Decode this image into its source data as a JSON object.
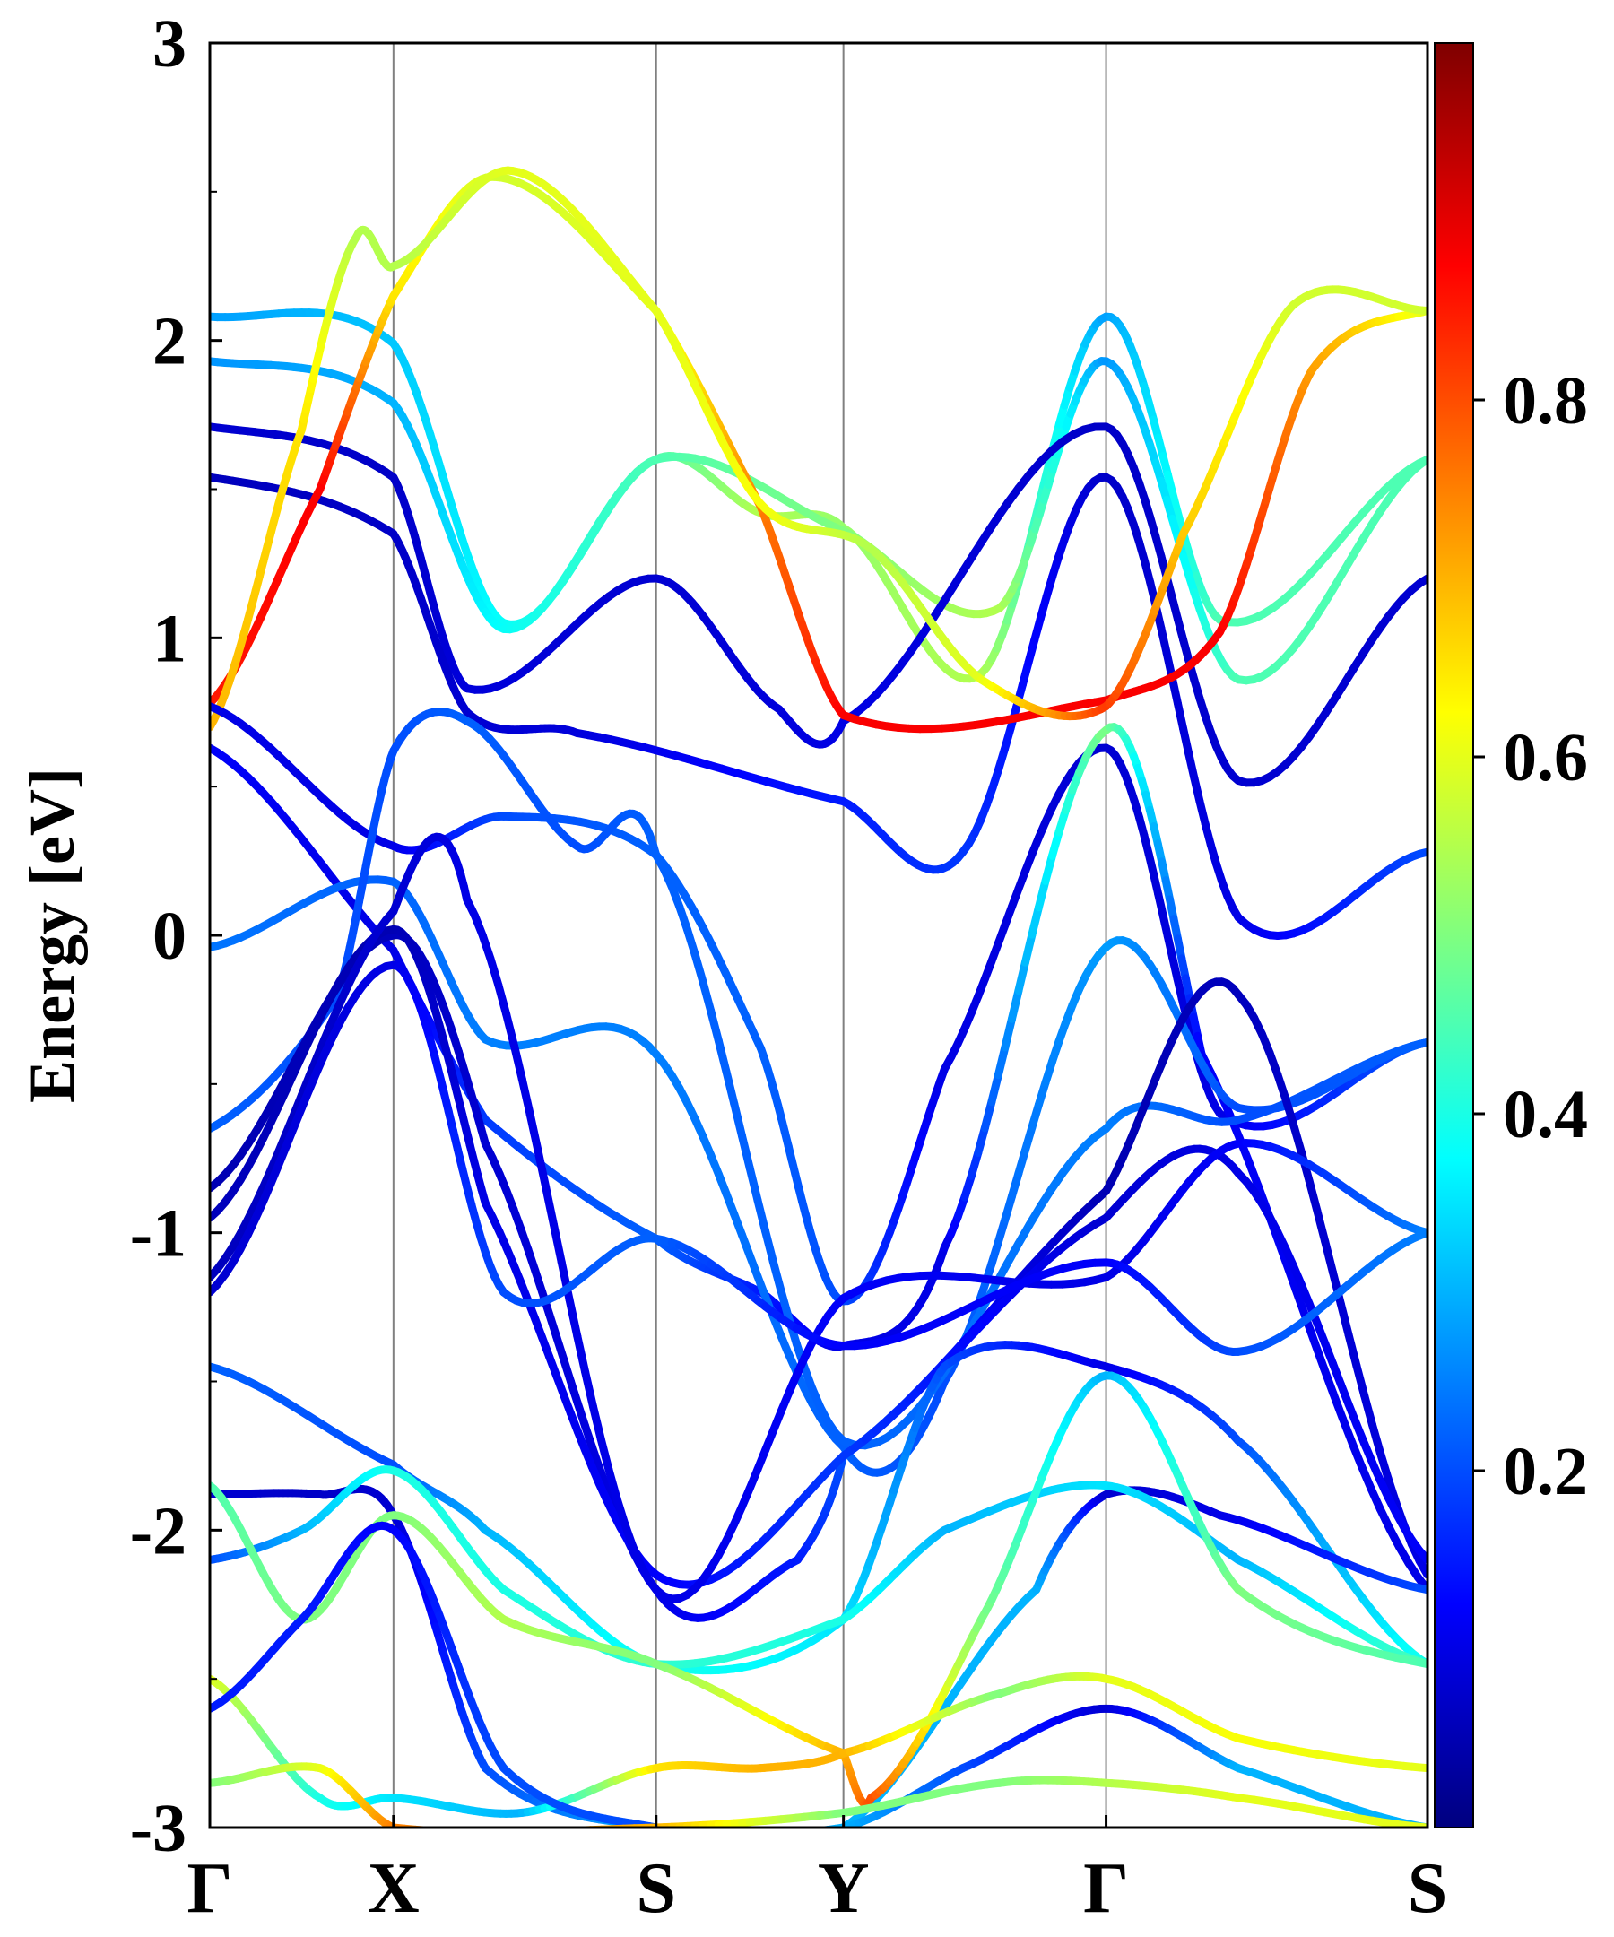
{
  "chart_data": {
    "type": "line",
    "title": "",
    "ylabel": "Energy [eV]",
    "xlabel": "",
    "ylim": [
      -3,
      3
    ],
    "y_ticks": [
      {
        "value": 3,
        "label": "3"
      },
      {
        "value": 2,
        "label": "2"
      },
      {
        "value": 1,
        "label": "1"
      },
      {
        "value": 0,
        "label": "0"
      },
      {
        "value": -1,
        "label": "-1"
      },
      {
        "value": -2,
        "label": "-2"
      },
      {
        "value": -3,
        "label": "-3"
      }
    ],
    "x_path": [
      {
        "label": "Γ",
        "k": 0.0
      },
      {
        "label": "X",
        "k": 1.0
      },
      {
        "label": "S",
        "k": 2.43
      },
      {
        "label": "Y",
        "k": 3.45
      },
      {
        "label": "Γ",
        "k": 4.88
      },
      {
        "label": "S",
        "k": 6.63
      }
    ],
    "grid": "vertical lines at high-symmetry points",
    "colormap": "jet",
    "colorbar": {
      "range": [
        0.0,
        1.0
      ],
      "ticks": [
        {
          "value": 0.2,
          "label": "0.2"
        },
        {
          "value": 0.4,
          "label": "0.4"
        },
        {
          "value": 0.6,
          "label": "0.6"
        },
        {
          "value": 0.8,
          "label": "0.8"
        }
      ]
    },
    "series": [
      {
        "points": [
          [
            0,
            2.08,
            0.28
          ],
          [
            1,
            1.99,
            0.32
          ],
          [
            1.6,
            1.05,
            0.38
          ],
          [
            2.43,
            1.6,
            0.45
          ],
          [
            3.0,
            1.42,
            0.55
          ],
          [
            3.45,
            1.37,
            0.52
          ],
          [
            4.2,
            0.88,
            0.55
          ],
          [
            4.88,
            2.08,
            0.28
          ],
          [
            5.5,
            1.06,
            0.45
          ],
          [
            6.63,
            1.6,
            0.45
          ]
        ]
      },
      {
        "points": [
          [
            0,
            1.93,
            0.27
          ],
          [
            1,
            1.79,
            0.3
          ],
          [
            1.6,
            1.03,
            0.38
          ],
          [
            2.43,
            1.6,
            0.45
          ],
          [
            3.45,
            1.36,
            0.5
          ],
          [
            4.3,
            1.1,
            0.55
          ],
          [
            4.88,
            1.93,
            0.27
          ],
          [
            5.6,
            0.86,
            0.45
          ],
          [
            6.63,
            1.6,
            0.45
          ]
        ]
      },
      {
        "points": [
          [
            0,
            1.71,
            0.08
          ],
          [
            1,
            1.54,
            0.07
          ],
          [
            1.4,
            0.83,
            0.09
          ],
          [
            2.43,
            1.2,
            0.08
          ],
          [
            3.1,
            0.76,
            0.09
          ],
          [
            3.45,
            0.72,
            0.1
          ],
          [
            4.88,
            1.71,
            0.07
          ],
          [
            5.6,
            0.52,
            0.08
          ],
          [
            6.63,
            1.2,
            0.08
          ]
        ]
      },
      {
        "points": [
          [
            0,
            1.54,
            0.06
          ],
          [
            1,
            1.35,
            0.07
          ],
          [
            1.4,
            0.75,
            0.08
          ],
          [
            2.0,
            0.68,
            0.09
          ],
          [
            3.45,
            0.45,
            0.15
          ],
          [
            4.1,
            0.28,
            0.18
          ],
          [
            4.88,
            1.54,
            0.07
          ],
          [
            5.6,
            0.06,
            0.1
          ],
          [
            6.63,
            0.28,
            0.2
          ]
        ]
      },
      {
        "points": [
          [
            0,
            0.78,
            0.85
          ],
          [
            0.6,
            1.5,
            0.88
          ],
          [
            1,
            2.15,
            0.65
          ],
          [
            1.55,
            2.55,
            0.58
          ],
          [
            2.43,
            2.1,
            0.6
          ],
          [
            3.0,
            1.44,
            0.75
          ],
          [
            3.45,
            0.74,
            0.88
          ],
          [
            4.88,
            0.79,
            0.88
          ],
          [
            5.5,
            1.02,
            0.88
          ],
          [
            6.0,
            1.9,
            0.72
          ],
          [
            6.63,
            2.1,
            0.6
          ]
        ]
      },
      {
        "points": [
          [
            0,
            0.7,
            0.7
          ],
          [
            0.5,
            1.7,
            0.65
          ],
          [
            0.8,
            2.35,
            0.55
          ],
          [
            1,
            2.25,
            0.55
          ],
          [
            1.65,
            2.57,
            0.6
          ],
          [
            2.43,
            2.1,
            0.6
          ],
          [
            3.0,
            1.45,
            0.62
          ],
          [
            3.6,
            1.3,
            0.55
          ],
          [
            4.2,
            0.86,
            0.6
          ],
          [
            4.88,
            0.77,
            0.82
          ],
          [
            5.3,
            1.35,
            0.68
          ],
          [
            5.9,
            2.12,
            0.58
          ],
          [
            6.63,
            2.1,
            0.58
          ]
        ]
      },
      {
        "points": [
          [
            0,
            0.77,
            0.1
          ],
          [
            1,
            0.3,
            0.1
          ],
          [
            1.6,
            0.4,
            0.2
          ],
          [
            2.43,
            0.27,
            0.22
          ],
          [
            3.0,
            -0.38,
            0.22
          ],
          [
            3.45,
            -1.23,
            0.2
          ],
          [
            4.0,
            -0.45,
            0.1
          ],
          [
            4.88,
            0.63,
            0.08
          ],
          [
            5.5,
            -0.6,
            0.1
          ],
          [
            6.63,
            -0.36,
            0.22
          ]
        ]
      },
      {
        "points": [
          [
            0,
            0.63,
            0.12
          ],
          [
            1,
            -0.05,
            0.1
          ],
          [
            1.5,
            -0.62,
            0.18
          ],
          [
            2.43,
            -1.02,
            0.22
          ],
          [
            3.0,
            -1.2,
            0.15
          ],
          [
            3.45,
            -1.38,
            0.1
          ],
          [
            4.0,
            -1.05,
            0.1
          ],
          [
            4.88,
            0.69,
            0.5
          ],
          [
            5.4,
            -0.4,
            0.12
          ],
          [
            6.63,
            -2.2,
            0.1
          ]
        ]
      },
      {
        "points": [
          [
            0,
            -0.04,
            0.24
          ],
          [
            1,
            0.18,
            0.22
          ],
          [
            1.5,
            -0.35,
            0.25
          ],
          [
            2.43,
            -0.4,
            0.25
          ],
          [
            3.45,
            -1.72,
            0.22
          ],
          [
            4.0,
            -1.5,
            0.2
          ],
          [
            4.88,
            -0.04,
            0.28
          ],
          [
            5.6,
            -0.58,
            0.2
          ],
          [
            6.63,
            -0.36,
            0.22
          ]
        ]
      },
      {
        "points": [
          [
            0,
            -0.65,
            0.22
          ],
          [
            0.7,
            -0.2,
            0.2
          ],
          [
            1,
            0.62,
            0.2
          ],
          [
            1.4,
            0.72,
            0.22
          ],
          [
            2.0,
            0.3,
            0.2
          ],
          [
            2.43,
            0.27,
            0.22
          ],
          [
            3.45,
            -1.7,
            0.22
          ],
          [
            4.88,
            -0.65,
            0.25
          ],
          [
            5.6,
            -0.62,
            0.2
          ],
          [
            6.63,
            -0.36,
            0.22
          ]
        ]
      },
      {
        "points": [
          [
            0,
            -0.85,
            0.05
          ],
          [
            1,
            0.0,
            0.06
          ],
          [
            1.5,
            -0.7,
            0.08
          ],
          [
            2.43,
            -2.2,
            0.1
          ],
          [
            3.2,
            -2.1,
            0.15
          ],
          [
            3.45,
            -1.75,
            0.2
          ],
          [
            4.88,
            -0.86,
            0.05
          ],
          [
            5.6,
            -0.2,
            0.06
          ],
          [
            6.63,
            -2.15,
            0.1
          ]
        ]
      },
      {
        "points": [
          [
            0,
            -0.95,
            0.06
          ],
          [
            1,
            0.02,
            0.05
          ],
          [
            1.5,
            -0.9,
            0.1
          ],
          [
            2.43,
            -2.15,
            0.12
          ],
          [
            3.45,
            -1.75,
            0.18
          ],
          [
            4.88,
            -0.95,
            0.08
          ],
          [
            5.6,
            -0.8,
            0.1
          ],
          [
            6.63,
            -2.1,
            0.12
          ]
        ]
      },
      {
        "points": [
          [
            0,
            -1.15,
            0.06
          ],
          [
            1,
            0.08,
            0.08
          ],
          [
            1.4,
            0.12,
            0.1
          ],
          [
            2.43,
            -2.2,
            0.1
          ],
          [
            3.45,
            -1.22,
            0.12
          ],
          [
            4.88,
            -1.15,
            0.1
          ],
          [
            5.6,
            -0.7,
            0.12
          ],
          [
            6.63,
            -1.0,
            0.25
          ]
        ]
      },
      {
        "points": [
          [
            0,
            -1.2,
            0.08
          ],
          [
            1,
            -0.1,
            0.1
          ],
          [
            1.6,
            -1.2,
            0.2
          ],
          [
            2.43,
            -1.02,
            0.22
          ],
          [
            3.45,
            -1.38,
            0.12
          ],
          [
            4.88,
            -1.1,
            0.12
          ],
          [
            5.6,
            -1.4,
            0.2
          ],
          [
            6.63,
            -1.0,
            0.25
          ]
        ]
      },
      {
        "points": [
          [
            0,
            -1.45,
            0.22
          ],
          [
            1,
            -1.78,
            0.2
          ],
          [
            1.5,
            -2.0,
            0.3
          ],
          [
            2.43,
            -2.45,
            0.4
          ],
          [
            3.45,
            -2.3,
            0.35
          ],
          [
            4.0,
            -1.45,
            0.2
          ],
          [
            4.88,
            -1.45,
            0.1
          ],
          [
            5.6,
            -1.7,
            0.2
          ],
          [
            6.63,
            -2.45,
            0.4
          ]
        ]
      },
      {
        "points": [
          [
            0,
            -1.88,
            0.08
          ],
          [
            0.6,
            -1.88,
            0.07
          ],
          [
            1,
            -1.95,
            0.08
          ],
          [
            1.5,
            -2.8,
            0.2
          ],
          [
            2.43,
            -3.0,
            0.3
          ],
          [
            3.45,
            -3.0,
            0.3
          ],
          [
            4.5,
            -2.2,
            0.3
          ],
          [
            4.88,
            -1.88,
            0.08
          ],
          [
            5.5,
            -1.95,
            0.1
          ],
          [
            6.63,
            -2.2,
            0.2
          ]
        ]
      },
      {
        "points": [
          [
            0,
            -2.1,
            0.2
          ],
          [
            0.5,
            -2.0,
            0.3
          ],
          [
            1,
            -1.8,
            0.4
          ],
          [
            1.6,
            -2.2,
            0.4
          ],
          [
            2.43,
            -2.45,
            0.42
          ],
          [
            3.45,
            -2.3,
            0.4
          ],
          [
            4.0,
            -2.0,
            0.3
          ],
          [
            4.88,
            -1.85,
            0.35
          ],
          [
            5.6,
            -2.1,
            0.3
          ],
          [
            6.63,
            -2.45,
            0.45
          ]
        ]
      },
      {
        "points": [
          [
            0,
            -1.85,
            0.45
          ],
          [
            0.5,
            -2.3,
            0.5
          ],
          [
            1,
            -1.95,
            0.5
          ],
          [
            1.6,
            -2.3,
            0.55
          ],
          [
            2.43,
            -2.45,
            0.5
          ],
          [
            3.45,
            -2.75,
            0.7
          ],
          [
            3.6,
            -2.9,
            0.8
          ],
          [
            4.2,
            -2.3,
            0.5
          ],
          [
            4.88,
            -1.48,
            0.3
          ],
          [
            5.6,
            -2.2,
            0.5
          ],
          [
            6.63,
            -2.45,
            0.45
          ]
        ]
      },
      {
        "points": [
          [
            0,
            -2.5,
            0.6
          ],
          [
            0.6,
            -2.9,
            0.4
          ],
          [
            1,
            -2.9,
            0.35
          ],
          [
            1.7,
            -2.95,
            0.3
          ],
          [
            2.43,
            -2.8,
            0.65
          ],
          [
            3.0,
            -2.8,
            0.7
          ],
          [
            3.45,
            -2.75,
            0.7
          ],
          [
            4.3,
            -2.55,
            0.5
          ],
          [
            4.88,
            -2.5,
            0.6
          ],
          [
            5.6,
            -2.7,
            0.62
          ],
          [
            6.63,
            -2.8,
            0.6
          ]
        ]
      },
      {
        "points": [
          [
            0,
            -2.6,
            0.15
          ],
          [
            0.5,
            -2.3,
            0.15
          ],
          [
            1,
            -2.0,
            0.12
          ],
          [
            1.6,
            -2.8,
            0.2
          ],
          [
            2.43,
            -3.0,
            0.2
          ],
          [
            3.45,
            -3.0,
            0.3
          ],
          [
            4.1,
            -2.8,
            0.2
          ],
          [
            4.88,
            -2.6,
            0.08
          ],
          [
            5.6,
            -2.8,
            0.3
          ],
          [
            6.63,
            -3.0,
            0.3
          ]
        ]
      },
      {
        "points": [
          [
            0,
            -2.85,
            0.5
          ],
          [
            0.6,
            -2.8,
            0.6
          ],
          [
            1,
            -3.0,
            0.75
          ],
          [
            2.43,
            -3.0,
            0.7
          ],
          [
            3.45,
            -2.95,
            0.5
          ],
          [
            4.3,
            -2.85,
            0.5
          ],
          [
            4.88,
            -2.85,
            0.55
          ],
          [
            5.6,
            -2.9,
            0.6
          ],
          [
            6.63,
            -3.0,
            0.6
          ]
        ]
      }
    ]
  }
}
